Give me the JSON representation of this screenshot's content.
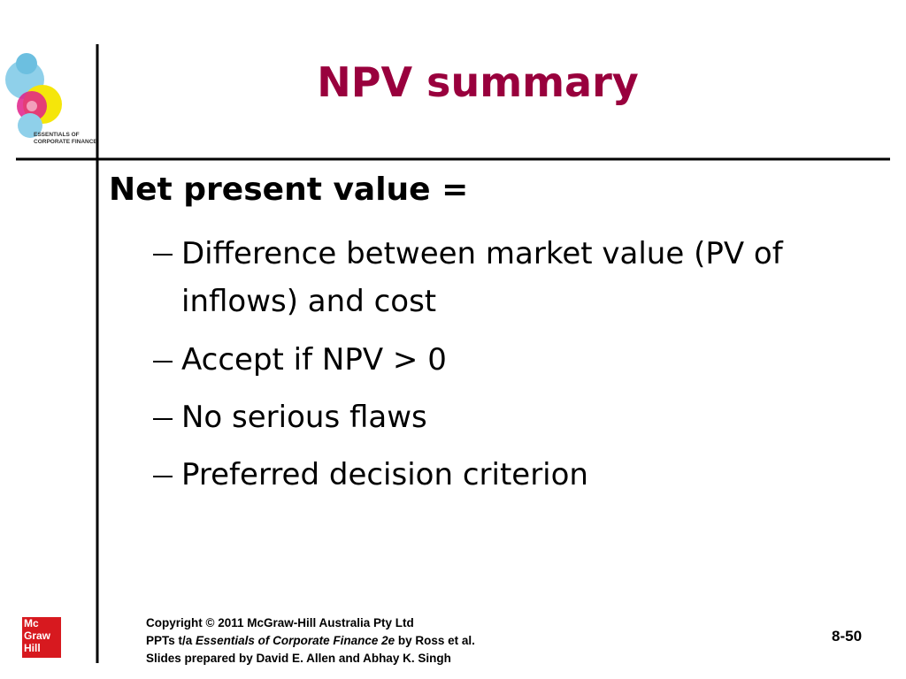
{
  "logo": {
    "text_line1": "ESSENTIALS OF",
    "text_line2": "CORPORATE FINANCE"
  },
  "header": {
    "title": "NPV summary"
  },
  "body": {
    "heading": "Net present value =",
    "bullets": [
      "Difference between market value (PV of inflows) and cost",
      "Accept if NPV > 0",
      "No serious flaws",
      "Preferred decision criterion"
    ]
  },
  "footer": {
    "publisher_logo": [
      "Mc",
      "Graw",
      "Hill"
    ],
    "copyright": "Copyright © 2011 McGraw-Hill Australia Pty Ltd",
    "ppts_prefix": "PPTs t/a",
    "book_title": "Essentials of Corporate Finance 2e",
    "ppts_suffix": "by Ross et al.",
    "prepared_by": "Slides prepared by David E. Allen and Abhay K. Singh",
    "page_number": "8-50"
  }
}
